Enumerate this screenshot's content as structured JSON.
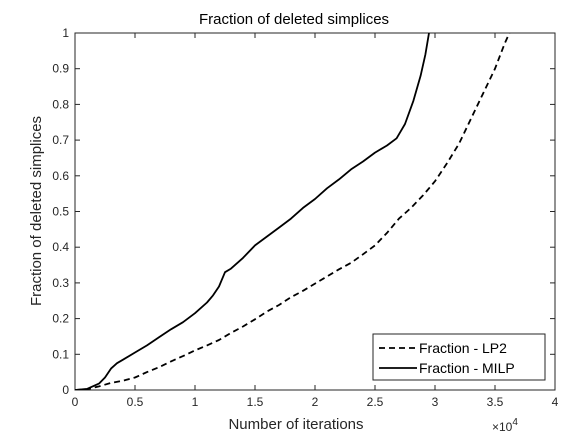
{
  "chart_data": {
    "type": "line",
    "title": "Fraction of deleted simplices",
    "xlabel": "Number of iterations",
    "ylabel": "Fraction of deleted simplices",
    "x_multiplier_label": "×10",
    "x_multiplier_exponent": "4",
    "xlim": [
      0,
      4
    ],
    "ylim": [
      0,
      1
    ],
    "x_ticks": [
      "0",
      "0.5",
      "1",
      "1.5",
      "2",
      "2.5",
      "3",
      "3.5",
      "4"
    ],
    "y_ticks": [
      "0",
      "0.1",
      "0.2",
      "0.3",
      "0.4",
      "0.5",
      "0.6",
      "0.7",
      "0.8",
      "0.9",
      "1"
    ],
    "grid": false,
    "legend_position": "bottom-right",
    "series": [
      {
        "name": "Fraction - LP2",
        "style": "dashed",
        "color": "#000000",
        "points": [
          [
            0,
            0
          ],
          [
            0.1,
            0.002
          ],
          [
            0.2,
            0.01
          ],
          [
            0.3,
            0.02
          ],
          [
            0.4,
            0.026
          ],
          [
            0.5,
            0.035
          ],
          [
            0.6,
            0.05
          ],
          [
            0.7,
            0.064
          ],
          [
            0.8,
            0.08
          ],
          [
            0.9,
            0.095
          ],
          [
            1.0,
            0.111
          ],
          [
            1.1,
            0.125
          ],
          [
            1.2,
            0.14
          ],
          [
            1.3,
            0.16
          ],
          [
            1.4,
            0.178
          ],
          [
            1.5,
            0.198
          ],
          [
            1.6,
            0.22
          ],
          [
            1.7,
            0.238
          ],
          [
            1.8,
            0.26
          ],
          [
            1.9,
            0.278
          ],
          [
            2.0,
            0.298
          ],
          [
            2.1,
            0.318
          ],
          [
            2.2,
            0.338
          ],
          [
            2.3,
            0.356
          ],
          [
            2.4,
            0.38
          ],
          [
            2.5,
            0.405
          ],
          [
            2.6,
            0.44
          ],
          [
            2.7,
            0.48
          ],
          [
            2.8,
            0.51
          ],
          [
            2.9,
            0.545
          ],
          [
            3.0,
            0.585
          ],
          [
            3.1,
            0.635
          ],
          [
            3.2,
            0.69
          ],
          [
            3.3,
            0.76
          ],
          [
            3.4,
            0.83
          ],
          [
            3.5,
            0.9
          ],
          [
            3.58,
            0.97
          ],
          [
            3.62,
            1.0
          ]
        ]
      },
      {
        "name": "Fraction - MILP",
        "style": "solid",
        "color": "#000000",
        "points": [
          [
            0,
            0
          ],
          [
            0.1,
            0.003
          ],
          [
            0.2,
            0.018
          ],
          [
            0.25,
            0.035
          ],
          [
            0.3,
            0.06
          ],
          [
            0.35,
            0.075
          ],
          [
            0.4,
            0.085
          ],
          [
            0.5,
            0.105
          ],
          [
            0.6,
            0.125
          ],
          [
            0.7,
            0.148
          ],
          [
            0.8,
            0.17
          ],
          [
            0.9,
            0.19
          ],
          [
            1.0,
            0.215
          ],
          [
            1.1,
            0.245
          ],
          [
            1.15,
            0.265
          ],
          [
            1.2,
            0.29
          ],
          [
            1.25,
            0.33
          ],
          [
            1.3,
            0.34
          ],
          [
            1.4,
            0.37
          ],
          [
            1.5,
            0.405
          ],
          [
            1.6,
            0.43
          ],
          [
            1.7,
            0.455
          ],
          [
            1.8,
            0.48
          ],
          [
            1.9,
            0.51
          ],
          [
            2.0,
            0.535
          ],
          [
            2.1,
            0.565
          ],
          [
            2.2,
            0.59
          ],
          [
            2.3,
            0.618
          ],
          [
            2.4,
            0.64
          ],
          [
            2.5,
            0.665
          ],
          [
            2.6,
            0.685
          ],
          [
            2.68,
            0.705
          ],
          [
            2.75,
            0.745
          ],
          [
            2.82,
            0.81
          ],
          [
            2.88,
            0.88
          ],
          [
            2.92,
            0.94
          ],
          [
            2.95,
            1.0
          ]
        ]
      }
    ]
  }
}
